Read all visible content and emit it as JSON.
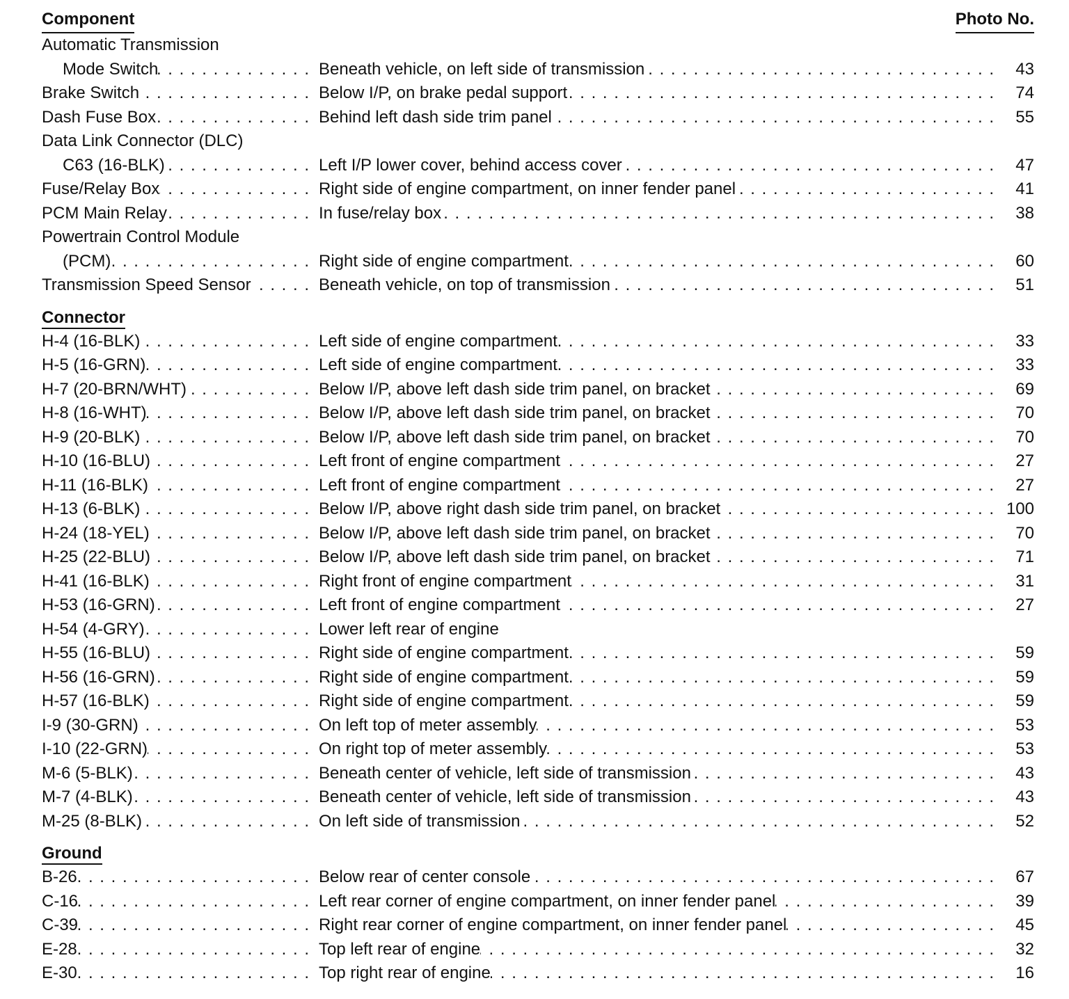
{
  "header": {
    "component": "Component",
    "photo_no": "Photo No."
  },
  "sections": [
    {
      "title": "",
      "rows": [
        {
          "component": [
            "Automatic Transmission",
            "Mode Switch"
          ],
          "location": "Beneath vehicle, on left side of transmission",
          "photo": "43"
        },
        {
          "component": [
            "Brake Switch"
          ],
          "location": "Below I/P, on brake pedal support",
          "photo": "74"
        },
        {
          "component": [
            "Dash Fuse Box"
          ],
          "location": "Behind left dash side trim panel",
          "photo": "55"
        },
        {
          "component": [
            "Data Link Connector (DLC)",
            "C63 (16-BLK)"
          ],
          "location": "Left I/P lower cover, behind access cover",
          "photo": "47"
        },
        {
          "component": [
            "Fuse/Relay Box"
          ],
          "location": "Right side of engine compartment, on inner fender panel",
          "photo": "41"
        },
        {
          "component": [
            "PCM Main Relay"
          ],
          "location": "In fuse/relay box",
          "photo": "38"
        },
        {
          "component": [
            "Powertrain Control Module",
            "(PCM)"
          ],
          "location": "Right side of engine compartment",
          "photo": "60"
        },
        {
          "component": [
            "Transmission Speed Sensor"
          ],
          "location": "Beneath vehicle, on top of transmission",
          "photo": "51"
        }
      ]
    },
    {
      "title": "Connector",
      "rows": [
        {
          "component": [
            "H-4 (16-BLK)"
          ],
          "location": "Left side of engine compartment",
          "photo": "33"
        },
        {
          "component": [
            "H-5 (16-GRN)"
          ],
          "location": "Left side of engine compartment",
          "photo": "33"
        },
        {
          "component": [
            "H-7 (20-BRN/WHT)"
          ],
          "location": "Below I/P, above left dash side trim panel, on bracket",
          "photo": "69"
        },
        {
          "component": [
            "H-8 (16-WHT)"
          ],
          "location": "Below I/P, above left dash side trim panel, on bracket",
          "photo": "70"
        },
        {
          "component": [
            "H-9 (20-BLK)"
          ],
          "location": "Below I/P, above left dash side trim panel, on bracket",
          "photo": "70"
        },
        {
          "component": [
            "H-10 (16-BLU)"
          ],
          "location": "Left front of engine compartment",
          "photo": "27"
        },
        {
          "component": [
            "H-11 (16-BLK)"
          ],
          "location": "Left front of engine compartment",
          "photo": "27"
        },
        {
          "component": [
            "H-13 (6-BLK)"
          ],
          "location": "Below I/P, above right dash side trim panel, on bracket",
          "photo": "100"
        },
        {
          "component": [
            "H-24 (18-YEL)"
          ],
          "location": "Below I/P, above left dash side trim panel, on bracket",
          "photo": "70"
        },
        {
          "component": [
            "H-25 (22-BLU)"
          ],
          "location": "Below I/P, above left dash side trim panel, on bracket",
          "photo": "71"
        },
        {
          "component": [
            "H-41 (16-BLK)"
          ],
          "location": "Right front of engine compartment",
          "photo": "31"
        },
        {
          "component": [
            "H-53 (16-GRN)"
          ],
          "location": "Left front of engine compartment",
          "photo": "27"
        },
        {
          "component": [
            "H-54 (4-GRY)"
          ],
          "location": "Lower left rear of engine",
          "photo": ""
        },
        {
          "component": [
            "H-55 (16-BLU)"
          ],
          "location": "Right side of engine compartment",
          "photo": "59"
        },
        {
          "component": [
            "H-56 (16-GRN)"
          ],
          "location": "Right side of engine compartment",
          "photo": "59"
        },
        {
          "component": [
            "H-57 (16-BLK)"
          ],
          "location": "Right side of engine compartment",
          "photo": "59"
        },
        {
          "component": [
            "I-9 (30-GRN)"
          ],
          "location": "On left top of meter assembly",
          "photo": "53"
        },
        {
          "component": [
            "I-10 (22-GRN)"
          ],
          "location": "On right top of meter assembly",
          "photo": "53"
        },
        {
          "component": [
            "M-6 (5-BLK)"
          ],
          "location": "Beneath center of vehicle, left side of transmission",
          "photo": "43"
        },
        {
          "component": [
            "M-7 (4-BLK)"
          ],
          "location": "Beneath center of vehicle, left side of transmission",
          "photo": "43"
        },
        {
          "component": [
            "M-25 (8-BLK)"
          ],
          "location": "On left side of transmission",
          "photo": "52"
        }
      ]
    },
    {
      "title": "Ground",
      "rows": [
        {
          "component": [
            "B-26"
          ],
          "location": "Below rear of center console",
          "photo": "67"
        },
        {
          "component": [
            "C-16"
          ],
          "location": "Left rear corner of engine compartment, on inner fender panel",
          "photo": "39"
        },
        {
          "component": [
            "C-39"
          ],
          "location": "Right rear corner of engine compartment, on inner fender panel",
          "photo": "45"
        },
        {
          "component": [
            "E-28"
          ],
          "location": "Top left rear of engine",
          "photo": "32"
        },
        {
          "component": [
            "E-30"
          ],
          "location": "Top right rear of engine",
          "photo": "16"
        }
      ]
    }
  ]
}
